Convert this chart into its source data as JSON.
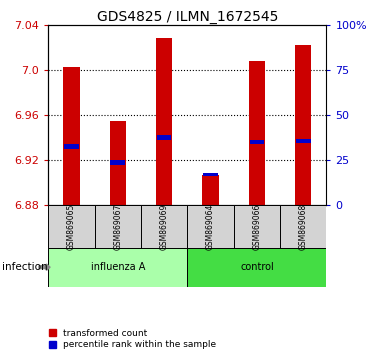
{
  "title": "GDS4825 / ILMN_1672545",
  "samples": [
    "GSM869065",
    "GSM869067",
    "GSM869069",
    "GSM869064",
    "GSM869066",
    "GSM869068"
  ],
  "bar_bottom": 6.88,
  "bar_tops": [
    7.003,
    6.955,
    7.028,
    6.907,
    7.008,
    7.022
  ],
  "blue_positions": [
    6.93,
    6.916,
    6.938,
    6.906,
    6.934,
    6.935
  ],
  "blue_heights": [
    0.004,
    0.004,
    0.004,
    0.003,
    0.004,
    0.004
  ],
  "ylim_min": 6.88,
  "ylim_max": 7.04,
  "yticks_left": [
    6.88,
    6.92,
    6.96,
    7.0,
    7.04
  ],
  "yticks_right_vals": [
    0,
    25,
    50,
    75,
    100
  ],
  "yticks_right_labels": [
    "0",
    "25",
    "50",
    "75",
    "100%"
  ],
  "bar_color": "#CC0000",
  "blue_color": "#0000CC",
  "bar_width": 0.35,
  "grid_yticks": [
    6.92,
    6.96,
    7.0
  ],
  "group_spans": [
    {
      "name": "influenza A",
      "start": 0,
      "end": 2,
      "color": "#AAFFAA"
    },
    {
      "name": "control",
      "start": 3,
      "end": 5,
      "color": "#44DD44"
    }
  ],
  "gray_box_color": "#D3D3D3",
  "xlabel_infection": "infection",
  "legend_items": [
    "transformed count",
    "percentile rank within the sample"
  ],
  "title_fontsize": 10,
  "tick_fontsize": 8,
  "label_fontsize": 7,
  "left_tick_color": "#CC0000",
  "right_tick_color": "#0000CC"
}
